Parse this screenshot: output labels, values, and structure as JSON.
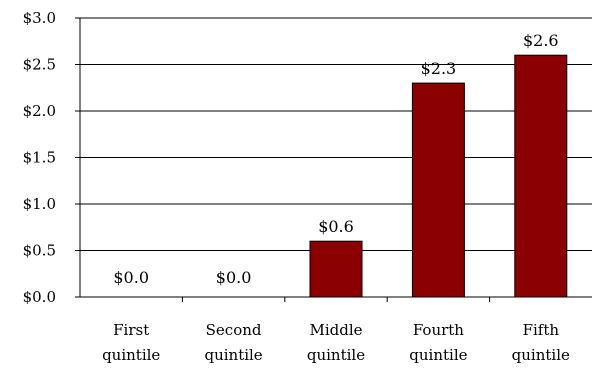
{
  "chart_data": {
    "type": "bar",
    "categories": [
      [
        "First",
        "quintile"
      ],
      [
        "Second",
        "quintile"
      ],
      [
        "Middle",
        "quintile"
      ],
      [
        "Fourth",
        "quintile"
      ],
      [
        "Fifth",
        "quintile"
      ]
    ],
    "values": [
      0.0,
      0.0,
      0.6,
      2.3,
      2.6
    ],
    "data_labels": [
      "$0.0",
      "$0.0",
      "$0.6",
      "$2.3",
      "$2.6"
    ],
    "y_ticks": [
      0.0,
      0.5,
      1.0,
      1.5,
      2.0,
      2.5,
      3.0
    ],
    "y_tick_labels": [
      "$0.0",
      "$0.5",
      "$1.0",
      "$1.5",
      "$2.0",
      "$2.5",
      "$3.0"
    ],
    "ylim": [
      0,
      3.0
    ],
    "grid": true,
    "legend": "none",
    "bar_color": "#8b0000",
    "title": "",
    "xlabel": "",
    "ylabel": ""
  }
}
